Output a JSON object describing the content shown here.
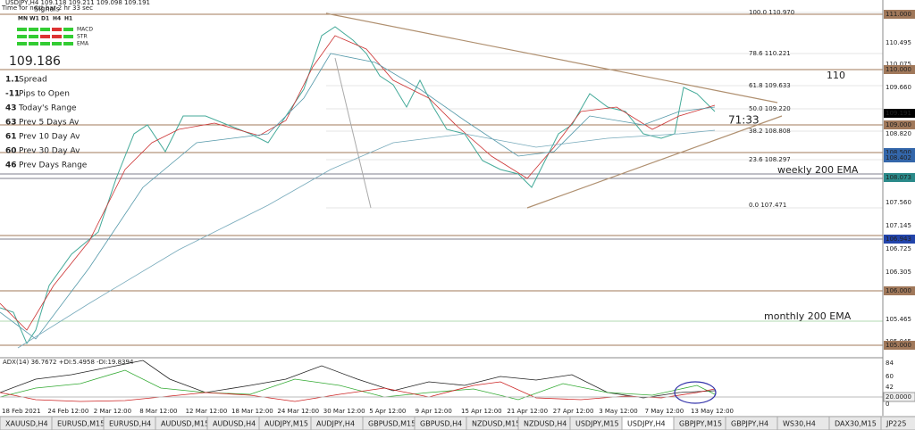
{
  "header": {
    "symbol": "USDJPY,H4 109.118 109.211 109.098 109.191",
    "timer": "Time for next bar 2 hr 33 sec",
    "signals": "Signals"
  },
  "signals": {
    "columns": [
      "MN",
      "W1",
      "D1",
      "H4",
      "H1"
    ],
    "rows": [
      "MACD",
      "STR",
      "EMA"
    ]
  },
  "info": {
    "price": "109.186",
    "items": [
      [
        "1.1",
        "Spread"
      ],
      [
        "-11",
        "Pips to Open"
      ],
      [
        "43",
        "Today's Range"
      ],
      [
        "63",
        "Prev 5 Days Av"
      ],
      [
        "61",
        "Prev 10 Day Av"
      ],
      [
        "60",
        "Prev 30 Day Av"
      ],
      [
        "46",
        "Prev Days Range"
      ]
    ]
  },
  "price_axis": [
    "111.000",
    "110.495",
    "110.075",
    "110.000",
    "109.660",
    "109.191",
    "109.000",
    "108.820",
    "108.500",
    "108.402",
    "108.073",
    "107.560",
    "107.145",
    "106.943",
    "106.725",
    "106.305",
    "106.000",
    "105.465",
    "105.045",
    "105.000"
  ],
  "fib_levels": [
    "100.0 110.970",
    "78.6 110.221",
    "61.8 109.633",
    "50.0 109.220",
    "38.2 108.808",
    "23.6 108.297",
    "0.0 107.471"
  ],
  "annotations": {
    "level": "110",
    "countdown": "71:33",
    "weekly": "weekly 200 EMA",
    "monthly": "monthly 200 EMA"
  },
  "indicator": {
    "label": "ADX(14) 36.7672 +DI:5.4958 -DI:19.8394",
    "axis": [
      "84",
      "60",
      "42",
      "20.0000",
      "0"
    ]
  },
  "dates": [
    "18 Feb 2021",
    "24 Feb 12:00",
    "2 Mar 12:00",
    "8 Mar 12:00",
    "12 Mar 12:00",
    "18 Mar 12:00",
    "24 Mar 12:00",
    "30 Mar 12:00",
    "5 Apr 12:00",
    "9 Apr 12:00",
    "15 Apr 12:00",
    "21 Apr 12:00",
    "27 Apr 12:00",
    "3 May 12:00",
    "7 May 12:00",
    "13 May 12:00"
  ],
  "tabs": [
    "XAUUSD,H4",
    "EURUSD,M15",
    "EURUSD,H4",
    "AUDUSD,M15",
    "AUDUSD,H4",
    "AUDJPY,M15",
    "AUDJPY,H4",
    "GBPUSD,M15",
    "GBPUSD,H4",
    "NZDUSD,M15",
    "NZDUSD,H4",
    "USDJPY,M15",
    "USDJPY,H4",
    "GBPJPY,M15",
    "GBPJPY,H4",
    "WS30,H4",
    "DAX30,M15",
    "JP225"
  ]
}
